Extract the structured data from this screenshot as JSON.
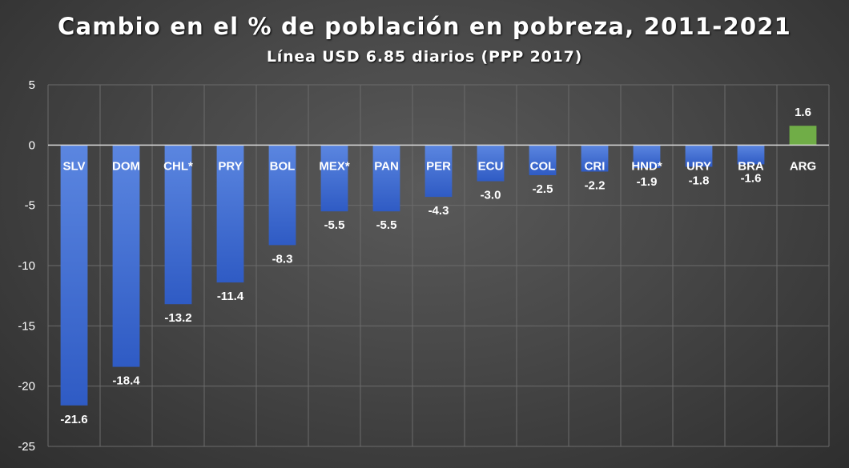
{
  "chart_data": {
    "type": "bar",
    "title": "Cambio en el % de población en pobreza, 2011-2021",
    "subtitle": "Línea USD 6.85 diarios (PPP 2017)",
    "categories": [
      "SLV",
      "DOM",
      "CHL*",
      "PRY",
      "BOL",
      "MEX*",
      "PAN",
      "PER",
      "ECU",
      "COL",
      "CRI",
      "HND*",
      "URY",
      "BRA",
      "ARG"
    ],
    "values": [
      -21.6,
      -18.4,
      -13.2,
      -11.4,
      -8.3,
      -5.5,
      -5.5,
      -4.3,
      -3.0,
      -2.5,
      -2.2,
      -1.9,
      -1.8,
      -1.6,
      1.6
    ],
    "value_labels": [
      "-21.6",
      "-18.4",
      "-13.2",
      "-11.4",
      "-8.3",
      "-5.5",
      "-5.5",
      "-4.3",
      "-3.0",
      "-2.5",
      "-2.2",
      "-1.9",
      "-1.8",
      "-1.6",
      "1.6"
    ],
    "ylim": [
      -25,
      5
    ],
    "yticks": [
      5,
      0,
      -5,
      -10,
      -15,
      -20,
      -25
    ],
    "ytick_labels": [
      "5",
      "0",
      "-5",
      "-10",
      "-15",
      "-20",
      "-25"
    ],
    "xlabel": "",
    "ylabel": "",
    "grid": true,
    "legend": "none",
    "colors": {
      "negative": "#3f6fd6",
      "positive": "#70ad47",
      "grid": "#6b6b6b",
      "zero_line": "#d9d9d9"
    }
  }
}
